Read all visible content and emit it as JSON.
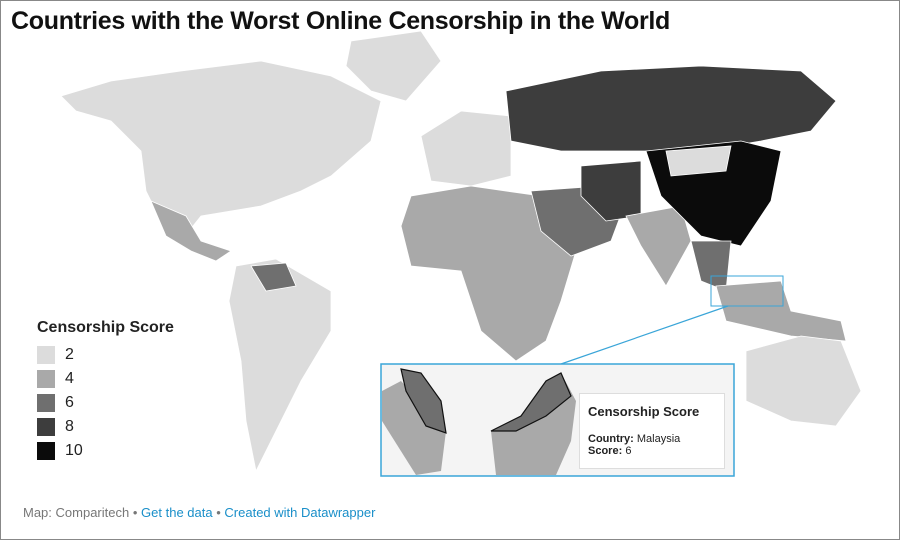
{
  "header": {
    "title": "Countries with the Worst Online Censorship in the World"
  },
  "legend": {
    "title": "Censorship Score",
    "items": [
      {
        "label": "2",
        "color": "#dcdcdc"
      },
      {
        "label": "4",
        "color": "#a9a9a9"
      },
      {
        "label": "6",
        "color": "#6f6f6f"
      },
      {
        "label": "8",
        "color": "#3d3d3d"
      },
      {
        "label": "10",
        "color": "#0b0b0b"
      }
    ]
  },
  "tooltip": {
    "title": "Censorship Score",
    "country_key": "Country:",
    "country": "Malaysia",
    "score_key": "Score:",
    "score": "6"
  },
  "footer": {
    "source": "Map: Comparitech",
    "separator": "•",
    "data_link": "Get the data",
    "credit_link": "Created with Datawrapper"
  }
}
